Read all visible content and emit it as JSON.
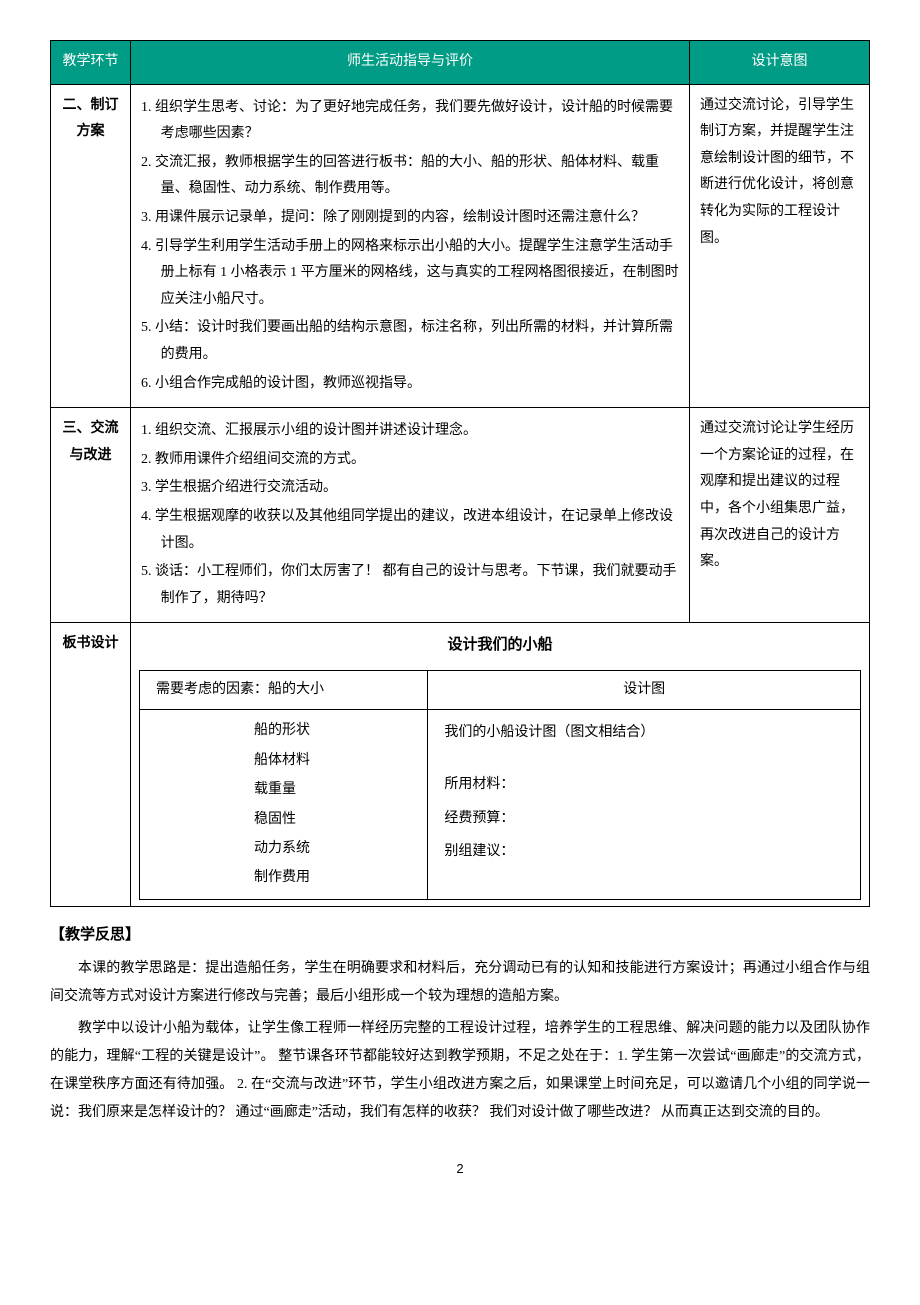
{
  "table_headers": {
    "col1": "教学环节",
    "col2": "师生活动指导与评价",
    "col3": "设计意图"
  },
  "r1": {
    "label": "二、制订方案",
    "items": [
      {
        "n": "1.",
        "text": "组织学生思考、讨论：为了更好地完成任务，我们要先做好设计，设计船的时候需要考虑哪些因素？"
      },
      {
        "n": "2.",
        "text": "交流汇报，教师根据学生的回答进行板书：船的大小、船的形状、船体材料、载重量、稳固性、动力系统、制作费用等。"
      },
      {
        "n": "3.",
        "text": "用课件展示记录单，提问：除了刚刚提到的内容，绘制设计图时还需注意什么？"
      },
      {
        "n": "4.",
        "text": "引导学生利用学生活动手册上的网格来标示出小船的大小。提醒学生注意学生活动手册上标有 1 小格表示 1 平方厘米的网格线，这与真实的工程网格图很接近，在制图时应关注小船尺寸。"
      },
      {
        "n": "5.",
        "text": "小结：设计时我们要画出船的结构示意图，标注名称，列出所需的材料，并计算所需的费用。"
      },
      {
        "n": "6.",
        "text": "小组合作完成船的设计图，教师巡视指导。"
      }
    ],
    "intent": "通过交流讨论，引导学生制订方案，并提醒学生注意绘制设计图的细节，不断进行优化设计，将创意转化为实际的工程设计图。"
  },
  "r2": {
    "label": "三、交流与改进",
    "items": [
      {
        "n": "1.",
        "text": "组织交流、汇报展示小组的设计图并讲述设计理念。"
      },
      {
        "n": "2.",
        "text": "教师用课件介绍组间交流的方式。"
      },
      {
        "n": "3.",
        "text": "学生根据介绍进行交流活动。"
      },
      {
        "n": "4.",
        "text": "学生根据观摩的收获以及其他组同学提出的建议，改进本组设计，在记录单上修改设计图。"
      },
      {
        "n": "5.",
        "text": "谈话：小工程师们，你们太厉害了！ 都有自己的设计与思考。下节课，我们就要动手制作了，期待吗？"
      }
    ],
    "intent": "通过交流讨论让学生经历一个方案论证的过程，在观摩和提出建议的过程中，各个小组集思广益，再次改进自己的设计方案。"
  },
  "r3": {
    "label": "板书设计",
    "title": "设计我们的小船",
    "left_head": "需要考虑的因素：船的大小",
    "left_items": [
      "船的形状",
      "船体材料",
      "载重量",
      "稳固性",
      "动力系统",
      "制作费用"
    ],
    "right_head": "设计图",
    "right_items": [
      "我们的小船设计图（图文相结合）",
      "所用材料：",
      "经费预算：",
      "别组建议："
    ]
  },
  "reflection_heading": "【教学反思】",
  "reflection_p1": "本课的教学思路是：提出造船任务，学生在明确要求和材料后，充分调动已有的认知和技能进行方案设计；再通过小组合作与组间交流等方式对设计方案进行修改与完善；最后小组形成一个较为理想的造船方案。",
  "reflection_p2": "教学中以设计小船为载体，让学生像工程师一样经历完整的工程设计过程，培养学生的工程思维、解决问题的能力以及团队协作的能力，理解“工程的关键是设计”。 整节课各环节都能较好达到教学预期，不足之处在于：1. 学生第一次尝试“画廊走”的交流方式，在课堂秩序方面还有待加强。 2. 在“交流与改进”环节，学生小组改进方案之后，如果课堂上时间充足，可以邀请几个小组的同学说一说：我们原来是怎样设计的？ 通过“画廊走”活动，我们有怎样的收获？ 我们对设计做了哪些改进？ 从而真正达到交流的目的。",
  "page_number": "2"
}
